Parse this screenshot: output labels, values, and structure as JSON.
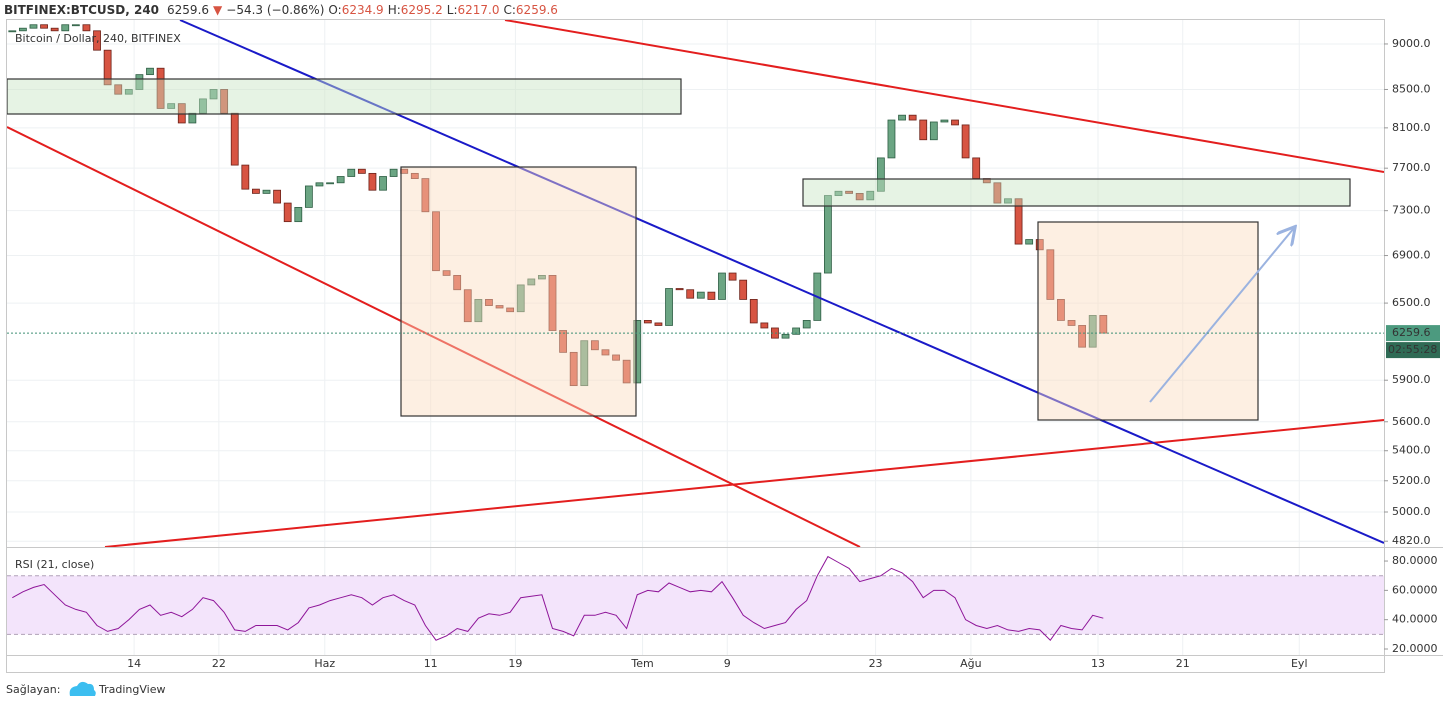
{
  "header": {
    "symbol": "BITFINEX:BTCUSD, 240",
    "last": "6259.6",
    "arrow": "▼",
    "change": "−54.3 (−0.86%)",
    "ohlc": [
      {
        "label": "O:",
        "value": "6234.9"
      },
      {
        "label": "H:",
        "value": "6295.2"
      },
      {
        "label": "L:",
        "value": "6217.0"
      },
      {
        "label": "C:",
        "value": "6259.6"
      }
    ],
    "countdown": "02:55:28"
  },
  "chart_data": [
    {
      "type": "candlestick",
      "subtitle": "Bitcoin / Dollar, 240, BITFINEX",
      "categories": [
        null,
        null,
        null,
        null,
        null,
        null,
        null,
        null,
        null,
        null,
        null,
        null,
        "14",
        null,
        null,
        null,
        null,
        null,
        null,
        null,
        "22",
        null,
        null,
        null,
        null,
        null,
        null,
        null,
        null,
        null,
        "Haz",
        null,
        null,
        null,
        null,
        null,
        null,
        null,
        null,
        null,
        "11",
        null,
        null,
        null,
        null,
        null,
        null,
        null,
        "19",
        null,
        null,
        null,
        null,
        null,
        null,
        null,
        null,
        null,
        null,
        null,
        "Tem",
        null,
        null,
        null,
        null,
        null,
        null,
        null,
        "9",
        null,
        null,
        null,
        null,
        null,
        null,
        null,
        null,
        null,
        null,
        null,
        null,
        null,
        "23",
        null,
        null,
        null,
        null,
        null,
        null,
        null,
        null,
        "Ağu",
        null,
        null,
        null,
        null,
        null,
        null,
        null,
        null,
        null,
        null,
        null,
        "13",
        null,
        null,
        null,
        null,
        null,
        null,
        null,
        "21",
        null,
        null,
        null,
        null,
        null,
        null,
        null,
        null,
        null,
        null,
        "Eyl",
        null,
        null,
        null,
        null,
        null,
        null,
        null
      ],
      "close": [
        9150,
        9180,
        9220,
        9180,
        9150,
        9220,
        9220,
        9150,
        8930,
        8550,
        8450,
        8500,
        8660,
        8730,
        8300,
        8350,
        8150,
        8250,
        8400,
        8500,
        8250,
        7730,
        7500,
        7460,
        7490,
        7370,
        7200,
        7330,
        7530,
        7560,
        7560,
        7620,
        7690,
        7650,
        7490,
        7620,
        7690,
        7650,
        7600,
        7290,
        6770,
        6730,
        6610,
        6350,
        6530,
        6480,
        6460,
        6430,
        6650,
        6700,
        6730,
        6280,
        6110,
        5860,
        6200,
        6130,
        6090,
        6050,
        5880,
        6360,
        6340,
        6320,
        6620,
        6610,
        6540,
        6590,
        6530,
        6750,
        6690,
        6530,
        6340,
        6300,
        6220,
        6250,
        6300,
        6360,
        6750,
        7440,
        7480,
        7460,
        7400,
        7480,
        7800,
        8180,
        8230,
        8180,
        7980,
        8160,
        8180,
        8130,
        7800,
        7600,
        7560,
        7370,
        7410,
        7000,
        7040,
        6950,
        6530,
        6360,
        6320,
        6150,
        6400,
        6259.6,
        null,
        null,
        null,
        null,
        null,
        null,
        null,
        null,
        null,
        null,
        null,
        null,
        null,
        null,
        null,
        null,
        null,
        null,
        null,
        null,
        null,
        null,
        null,
        null,
        null,
        null
      ],
      "up_color": "#6ba583",
      "down_color": "#d75442",
      "log_scale": true,
      "grid": true,
      "ylim": [
        4785,
        9275
      ],
      "yticks": [
        {
          "value": 9000,
          "label": "9000.0"
        },
        {
          "value": 8500,
          "label": "8500.0"
        },
        {
          "value": 8100,
          "label": "8100.0"
        },
        {
          "value": 7700,
          "label": "7700.0"
        },
        {
          "value": 7300,
          "label": "7300.0"
        },
        {
          "value": 6900,
          "label": "6900.0"
        },
        {
          "value": 6500,
          "label": "6500.0"
        },
        {
          "value": 5900,
          "label": "5900.0"
        },
        {
          "value": 5600,
          "label": "5600.0"
        },
        {
          "value": 5400,
          "label": "5400.0"
        },
        {
          "value": 5200,
          "label": "5200.0"
        },
        {
          "value": 5000,
          "label": "5000.0"
        },
        {
          "value": 4820,
          "label": "4820.0"
        }
      ]
    },
    {
      "type": "line",
      "title": "RSI (21, close)",
      "color": "#8e1599",
      "band": [
        30,
        70
      ],
      "band_color": "#f3e4fb",
      "values": [
        55,
        59,
        62,
        64,
        57,
        50,
        47,
        45,
        36,
        32,
        34,
        40,
        47,
        50,
        43,
        45,
        42,
        47,
        55,
        53,
        45,
        33,
        32,
        36,
        36,
        36,
        33,
        38,
        48,
        50,
        53,
        55,
        57,
        55,
        50,
        55,
        57,
        53,
        50,
        36,
        26,
        29,
        34,
        32,
        41,
        44,
        43,
        45,
        55,
        56,
        57,
        34,
        32,
        29,
        43,
        43,
        45,
        43,
        34,
        57,
        60,
        59,
        65,
        62,
        59,
        60,
        59,
        66,
        55,
        43,
        38,
        34,
        36,
        38,
        47,
        53,
        70,
        83,
        79,
        75,
        66,
        68,
        70,
        75,
        72,
        66,
        55,
        60,
        60,
        55,
        40,
        36,
        34,
        36,
        33,
        32,
        34,
        33,
        26,
        36,
        34,
        33,
        43,
        41,
        null,
        null,
        null,
        null,
        null,
        null,
        null,
        null,
        null,
        null,
        null,
        null,
        null,
        null,
        null,
        null,
        null,
        null,
        null,
        null,
        null,
        null,
        null,
        null,
        null,
        null
      ],
      "ylim": [
        15.9,
        88.9
      ],
      "yticks": [
        {
          "value": 80,
          "label": "80.0000"
        },
        {
          "value": 60,
          "label": "60.0000"
        },
        {
          "value": 40,
          "label": "40.0000"
        },
        {
          "value": 20,
          "label": "20.0000"
        }
      ]
    }
  ],
  "footer": {
    "provider_label": "Sağlayan:",
    "brand": "TradingView"
  }
}
